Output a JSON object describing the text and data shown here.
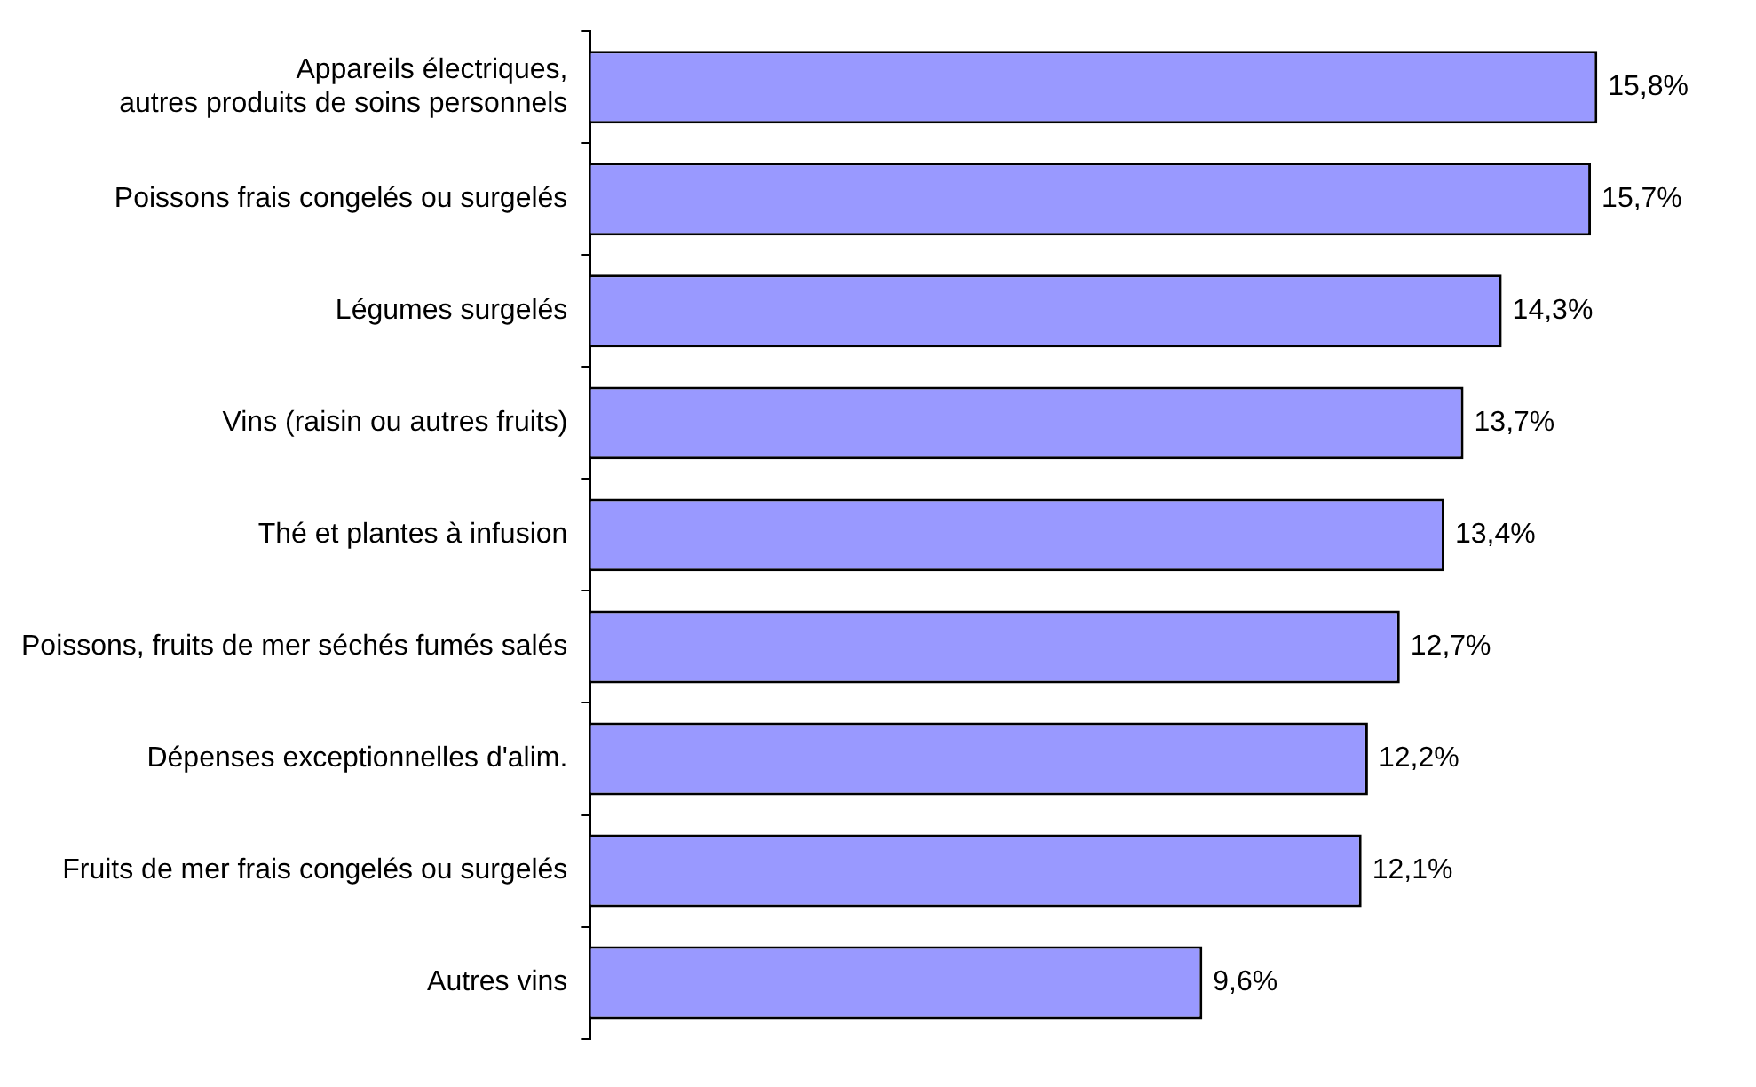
{
  "chart_data": {
    "type": "bar",
    "orientation": "horizontal",
    "categories": [
      "Appareils électriques,\nautres produits de soins personnels",
      "Poissons frais congelés ou surgelés",
      "Légumes surgelés",
      "Vins (raisin ou autres fruits)",
      "Thé et plantes à infusion",
      "Poissons, fruits de mer séchés fumés salés",
      "Dépenses exceptionnelles d'alim.",
      "Fruits de mer frais congelés ou surgelés",
      "Autres vins"
    ],
    "values": [
      15.8,
      15.7,
      14.3,
      13.7,
      13.4,
      12.7,
      12.2,
      12.1,
      9.6
    ],
    "value_labels": [
      "15,8%",
      "15,7%",
      "14,3%",
      "13,7%",
      "13,4%",
      "12,7%",
      "12,2%",
      "12,1%",
      "9,6%"
    ],
    "color": "#9999ff",
    "legend": false
  }
}
